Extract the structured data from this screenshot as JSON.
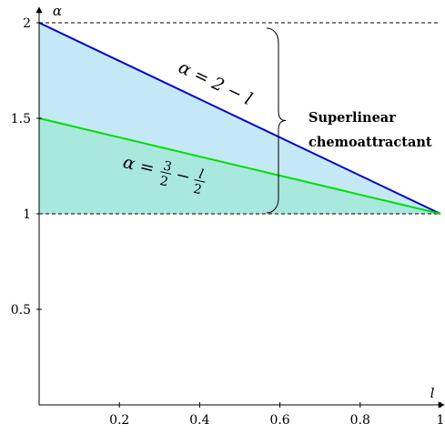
{
  "chart_data": {
    "type": "area",
    "title": "",
    "xlabel": "l",
    "ylabel": "α",
    "xlim": [
      0,
      1
    ],
    "ylim": [
      0,
      2
    ],
    "x_ticks": [
      "0.2",
      "0.4",
      "0.6",
      "0.8",
      "1"
    ],
    "y_ticks": [
      "0.5",
      "1",
      "1.5",
      "2"
    ],
    "series": [
      {
        "name": "α = 2 − l",
        "color": "#0000cc",
        "x": [
          0,
          1
        ],
        "y": [
          2,
          1
        ]
      },
      {
        "name": "α = 3/2 − l/2",
        "color": "#00dd00",
        "x": [
          0,
          1
        ],
        "y": [
          1.5,
          1
        ]
      }
    ],
    "reference_lines": [
      {
        "y": 2,
        "style": "dashed",
        "color": "#000000"
      },
      {
        "y": 1,
        "style": "dashed",
        "color": "#000000"
      }
    ],
    "fills": [
      {
        "between": "α = 2 − l and α = 3/2 − l/2",
        "color": "#c5e8f7"
      },
      {
        "between": "α = 3/2 − l/2 and α = 1",
        "color": "#a9e8dc"
      }
    ],
    "annotations": {
      "brace_text_line1": "Superlinear",
      "brace_text_line2": "chemoattractant",
      "blue_label": "α = 2 − l",
      "green_label_prefix": "α =",
      "green_label_frac1_num": "3",
      "green_label_frac1_den": "2",
      "green_label_minus": "−",
      "green_label_frac2_num": "l",
      "green_label_frac2_den": "2"
    }
  }
}
